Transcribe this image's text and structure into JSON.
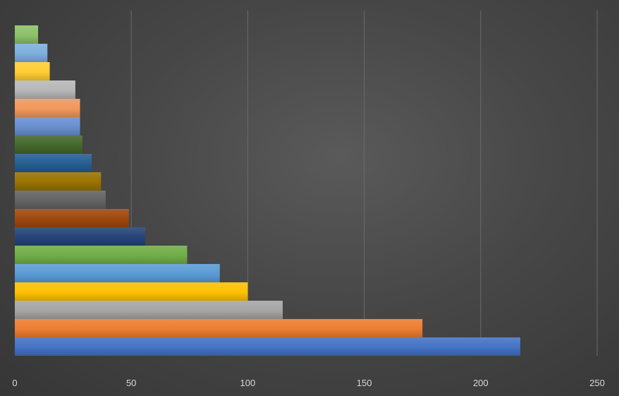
{
  "chart_data": {
    "type": "bar",
    "orientation": "horizontal",
    "title": "",
    "xlabel": "",
    "ylabel": "",
    "xlim": [
      0,
      250
    ],
    "x_ticks": [
      0,
      50,
      100,
      150,
      200,
      250
    ],
    "x_tick_labels": [
      "0",
      "50",
      "100",
      "150",
      "200",
      "250"
    ],
    "grid": "vertical",
    "legend": "none",
    "values": [
      217,
      175,
      115,
      100,
      88,
      74,
      56,
      49,
      39,
      37,
      33,
      29,
      28,
      28,
      26,
      15,
      14,
      10
    ],
    "colors": [
      "#4472C4",
      "#ED7D31",
      "#A5A5A5",
      "#FFC000",
      "#5B9BD5",
      "#70AD47",
      "#264478",
      "#9E480E",
      "#636363",
      "#997300",
      "#255E91",
      "#43682B",
      "#698ED0",
      "#F1975A",
      "#B7B7B7",
      "#FFCD33",
      "#7CAFDD",
      "#8CC168"
    ]
  }
}
